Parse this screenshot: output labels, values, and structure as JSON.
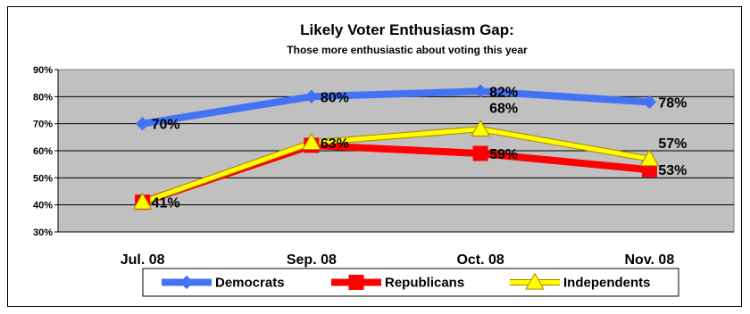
{
  "chart_data": {
    "type": "line",
    "title": "Likely Voter Enthusiasm Gap:",
    "subtitle": "Those more enthusiastic about voting this year",
    "categories": [
      "Jul. 08",
      "Sep. 08",
      "Oct. 08",
      "Nov. 08"
    ],
    "y_ticks": [
      "90%",
      "80%",
      "70%",
      "60%",
      "50%",
      "40%",
      "30%"
    ],
    "ylim": [
      30,
      90
    ],
    "grid": true,
    "legend_position": "bottom",
    "series": [
      {
        "name": "Democrats",
        "values": [
          70,
          80,
          82,
          78
        ],
        "color": "#4472F4",
        "marker": "diamond",
        "labels": [
          "70%",
          "80%",
          "82%",
          "78%"
        ]
      },
      {
        "name": "Republicans",
        "values": [
          41,
          62,
          59,
          53
        ],
        "color": "#FF0000",
        "marker": "square",
        "labels": [
          "",
          "",
          "59%",
          "53%"
        ]
      },
      {
        "name": "Independents",
        "values": [
          41,
          63,
          68,
          57
        ],
        "color": "#FFFF00",
        "marker": "triangle",
        "labels": [
          "41%",
          "63%",
          "68%",
          "57%"
        ]
      }
    ]
  }
}
